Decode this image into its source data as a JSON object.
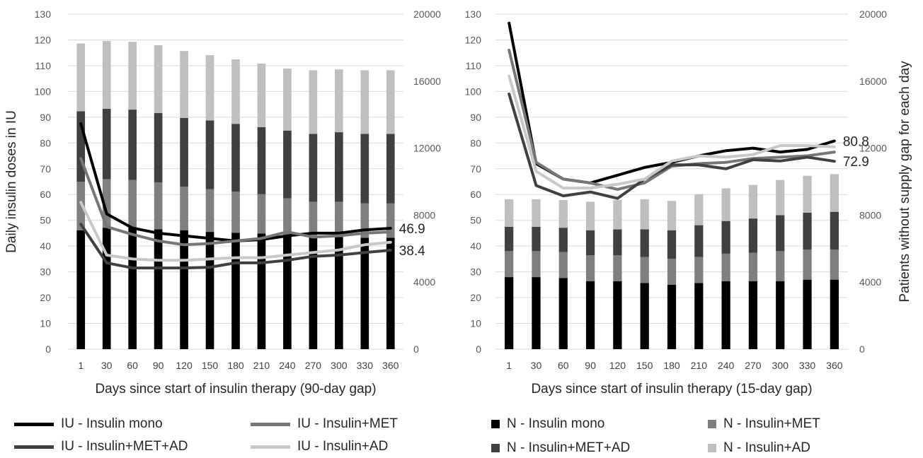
{
  "chart_data": [
    {
      "type": "bar",
      "xlabel": "Days since start of insulin therapy (90-day gap)",
      "ylabel": "Daily insulin doses in IU",
      "ylabel_right": "",
      "categories": [
        "1",
        "30",
        "60",
        "90",
        "120",
        "150",
        "180",
        "210",
        "240",
        "270",
        "300",
        "330",
        "360"
      ],
      "ylim": [
        0,
        130
      ],
      "yticks": [
        0,
        10,
        20,
        30,
        40,
        50,
        60,
        70,
        80,
        90,
        100,
        110,
        120,
        130
      ],
      "ylim_right": [
        0,
        20000
      ],
      "yticks_right": [
        0,
        4000,
        8000,
        12000,
        16000,
        20000
      ],
      "stack_series": [
        {
          "name": "N - Insulin mono",
          "color": "#000000",
          "values": [
            7100,
            7250,
            7250,
            7150,
            7100,
            7000,
            6950,
            6900,
            6800,
            6700,
            6700,
            6650,
            6650
          ]
        },
        {
          "name": "N - Insulin+MET",
          "color": "#7f7f7f",
          "values": [
            2900,
            2900,
            2850,
            2800,
            2600,
            2550,
            2450,
            2350,
            2200,
            2100,
            2100,
            2050,
            2050
          ]
        },
        {
          "name": "N - Insulin+MET+AD",
          "color": "#404040",
          "values": [
            4200,
            4200,
            4200,
            4150,
            4100,
            4100,
            4050,
            4000,
            4050,
            4050,
            4150,
            4150,
            4150
          ]
        },
        {
          "name": "N - Insulin+AD",
          "color": "#bfbfbf",
          "values": [
            4050,
            4050,
            4050,
            4050,
            4000,
            3900,
            3850,
            3800,
            3700,
            3800,
            3750,
            3800,
            3800
          ]
        }
      ],
      "line_series": [
        {
          "name": "IU - Insulin mono",
          "color": "#000000",
          "values": [
            87.5,
            52.5,
            47,
            45,
            44,
            43,
            42,
            42.5,
            44,
            45,
            45,
            46.3,
            46.9
          ]
        },
        {
          "name": "IU - Insulin+MET",
          "color": "#767676",
          "values": [
            74,
            47.5,
            44.5,
            42,
            40.5,
            41,
            42,
            43,
            45.5,
            43.5,
            44,
            45,
            45.5
          ]
        },
        {
          "name": "IU - Insulin+MET+AD",
          "color": "#404040",
          "values": [
            48.5,
            33.5,
            31.5,
            31.5,
            31.5,
            31.8,
            33.5,
            33.5,
            34.5,
            36,
            36.5,
            37.5,
            38.4
          ]
        },
        {
          "name": "IU - Insulin+AD",
          "color": "#c8c8c8",
          "values": [
            57,
            36.5,
            35,
            34.5,
            34.5,
            35,
            35.5,
            35.5,
            36.5,
            37.5,
            38.5,
            40.5,
            41.5
          ]
        }
      ],
      "annotations": [
        {
          "text": "46.9",
          "series": "IU - Insulin mono"
        },
        {
          "text": "38.4",
          "series": "IU - Insulin+MET+AD"
        }
      ],
      "legend": "bottom"
    },
    {
      "type": "bar",
      "xlabel": "Days since start of insulin therapy (15-day gap)",
      "ylabel": "",
      "ylabel_right": "Patients without supply gap for each day",
      "categories": [
        "1",
        "30",
        "60",
        "90",
        "120",
        "150",
        "180",
        "210",
        "240",
        "270",
        "300",
        "330",
        "360"
      ],
      "ylim": [
        0,
        130
      ],
      "yticks": [
        0,
        10,
        20,
        30,
        40,
        50,
        60,
        70,
        80,
        90,
        100,
        110,
        120,
        130
      ],
      "ylim_right": [
        0,
        20000
      ],
      "yticks_right": [
        0,
        4000,
        8000,
        12000,
        16000,
        20000
      ],
      "stack_series": [
        {
          "name": "N - Insulin mono",
          "color": "#000000",
          "values": [
            4300,
            4300,
            4250,
            4050,
            4050,
            3950,
            3850,
            3950,
            4050,
            4050,
            4050,
            4150,
            4150
          ]
        },
        {
          "name": "N - Insulin+MET",
          "color": "#7f7f7f",
          "values": [
            1550,
            1550,
            1550,
            1550,
            1550,
            1550,
            1550,
            1550,
            1650,
            1700,
            1800,
            1800,
            1800
          ]
        },
        {
          "name": "N - Insulin+MET+AD",
          "color": "#404040",
          "values": [
            1450,
            1450,
            1450,
            1500,
            1550,
            1650,
            1700,
            1900,
            1950,
            2050,
            2150,
            2200,
            2250
          ]
        },
        {
          "name": "N - Insulin+AD",
          "color": "#bfbfbf",
          "values": [
            1650,
            1650,
            1650,
            1700,
            1750,
            1800,
            1750,
            1850,
            1950,
            2000,
            2100,
            2200,
            2250
          ]
        }
      ],
      "line_series": [
        {
          "name": "IU - Insulin mono",
          "color": "#000000",
          "values": [
            126.5,
            72,
            66,
            64.5,
            67.5,
            70.5,
            72.5,
            75,
            77,
            78,
            76.5,
            77.5,
            80.8
          ]
        },
        {
          "name": "IU - Insulin+MET",
          "color": "#767676",
          "values": [
            116,
            72.5,
            66,
            64.5,
            62,
            64.5,
            71,
            72,
            72.5,
            74,
            74.5,
            75,
            76.5
          ]
        },
        {
          "name": "IU - Insulin+MET+AD",
          "color": "#404040",
          "values": [
            99,
            63.5,
            59.5,
            61,
            58.5,
            66,
            71.5,
            71.5,
            70,
            73.5,
            73,
            74.5,
            72.9
          ]
        },
        {
          "name": "IU - Insulin+AD",
          "color": "#c8c8c8",
          "values": [
            106,
            69,
            62.5,
            62.5,
            64,
            66,
            73,
            75,
            74.5,
            75.5,
            79,
            79,
            78.5
          ]
        }
      ],
      "annotations": [
        {
          "text": "80.8",
          "series": "IU - Insulin mono"
        },
        {
          "text": "72.9",
          "series": "IU - Insulin+MET+AD"
        }
      ],
      "legend": "bottom"
    }
  ],
  "legend_left": [
    {
      "label": "IU - Insulin mono",
      "color": "#000000"
    },
    {
      "label": "IU - Insulin+MET",
      "color": "#767676"
    },
    {
      "label": "IU - Insulin+MET+AD",
      "color": "#404040"
    },
    {
      "label": "IU - Insulin+AD",
      "color": "#c8c8c8"
    }
  ],
  "legend_right": [
    {
      "label": "N - Insulin mono",
      "color": "#000000"
    },
    {
      "label": "N - Insulin+MET",
      "color": "#7f7f7f"
    },
    {
      "label": "N - Insulin+MET+AD",
      "color": "#404040"
    },
    {
      "label": "N - Insulin+AD",
      "color": "#bfbfbf"
    }
  ]
}
